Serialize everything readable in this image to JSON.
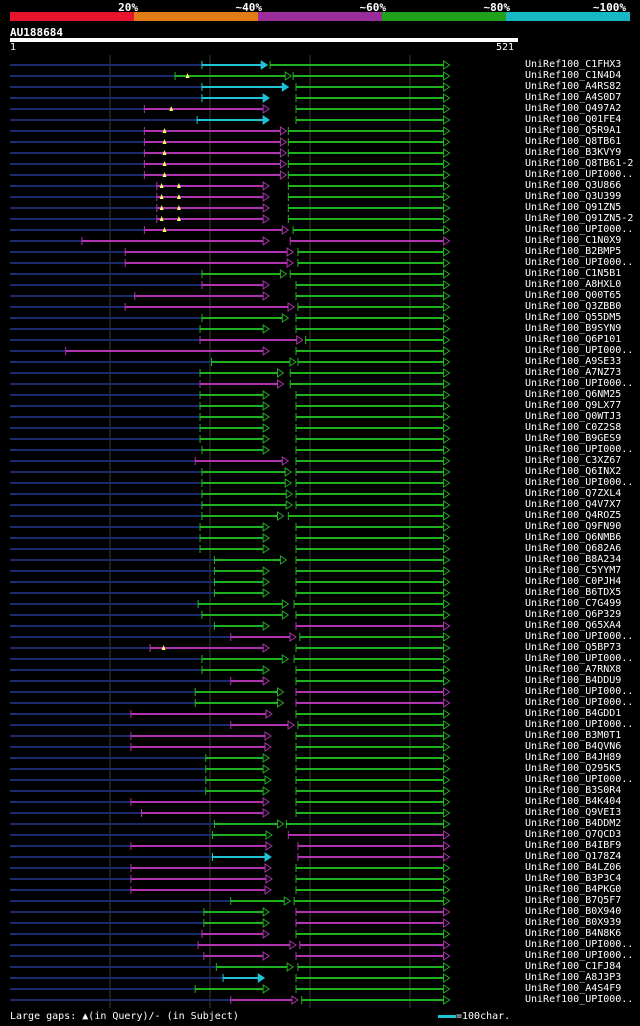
{
  "legend": {
    "segments": [
      {
        "label": "20%",
        "color": "#e8132d"
      },
      {
        "label": "~40%",
        "color": "#e07b16"
      },
      {
        "label": "~60%",
        "color": "#9b2d9a"
      },
      {
        "label": "~80%",
        "color": "#1fa219"
      },
      {
        "label": "~100%",
        "color": "#17b8c4"
      }
    ]
  },
  "query": {
    "id": "AU188684",
    "start": "1",
    "end": "521",
    "length": 521
  },
  "colors": {
    "purple": "#b033b0",
    "green": "#1fb21f",
    "cyan": "#1ec3d6",
    "query": "#1a2a6c",
    "grid": "#3a3a3a"
  },
  "hits": [
    {
      "name": "UniRef100_C1FHX3",
      "segs": [
        [
          200,
          268,
          "cyan"
        ],
        [
          271,
          458,
          "green"
        ]
      ]
    },
    {
      "name": "UniRef100_C1N4D4",
      "segs": [
        [
          172,
          293,
          "green"
        ],
        [
          295,
          458,
          "green"
        ]
      ],
      "q": [
        185
      ]
    },
    {
      "name": "UniRef100_A4RS82",
      "segs": [
        [
          200,
          290,
          "cyan"
        ],
        [
          298,
          458,
          "green"
        ]
      ]
    },
    {
      "name": "UniRef100_A4S0D7",
      "segs": [
        [
          200,
          270,
          "cyan"
        ],
        [
          298,
          458,
          "green"
        ]
      ]
    },
    {
      "name": "UniRef100_Q497A2",
      "segs": [
        [
          140,
          270,
          "purple"
        ],
        [
          298,
          458,
          "green"
        ]
      ],
      "q": [
        168
      ]
    },
    {
      "name": "UniRef100_Q01FE4",
      "segs": [
        [
          195,
          270,
          "cyan"
        ],
        [
          298,
          458,
          "green"
        ]
      ]
    },
    {
      "name": "UniRef100_Q5R9A1",
      "segs": [
        [
          140,
          288,
          "purple"
        ],
        [
          290,
          458,
          "green"
        ]
      ],
      "q": [
        161
      ]
    },
    {
      "name": "UniRef100_Q8TB61",
      "segs": [
        [
          140,
          288,
          "purple"
        ],
        [
          290,
          458,
          "green"
        ]
      ],
      "q": [
        161
      ]
    },
    {
      "name": "UniRef100_B3KVY9",
      "segs": [
        [
          140,
          288,
          "purple"
        ],
        [
          290,
          458,
          "green"
        ]
      ],
      "q": [
        161
      ]
    },
    {
      "name": "UniRef100_Q8TB61-2",
      "segs": [
        [
          140,
          288,
          "purple"
        ],
        [
          290,
          458,
          "green"
        ]
      ],
      "q": [
        161
      ]
    },
    {
      "name": "UniRef100_UPI000..",
      "segs": [
        [
          140,
          288,
          "purple"
        ],
        [
          290,
          458,
          "green"
        ]
      ],
      "q": [
        161
      ]
    },
    {
      "name": "UniRef100_Q3U866",
      "segs": [
        [
          153,
          270,
          "purple"
        ],
        [
          290,
          458,
          "green"
        ]
      ],
      "q": [
        158,
        176
      ]
    },
    {
      "name": "UniRef100_Q3U399",
      "segs": [
        [
          153,
          270,
          "purple"
        ],
        [
          290,
          458,
          "green"
        ]
      ],
      "q": [
        158,
        176
      ]
    },
    {
      "name": "UniRef100_Q91ZN5",
      "segs": [
        [
          153,
          270,
          "purple"
        ],
        [
          290,
          458,
          "green"
        ]
      ],
      "q": [
        158,
        176
      ]
    },
    {
      "name": "UniRef100_Q91ZN5-2",
      "segs": [
        [
          153,
          270,
          "purple"
        ],
        [
          290,
          458,
          "green"
        ]
      ],
      "q": [
        158,
        176
      ]
    },
    {
      "name": "UniRef100_UPI000..",
      "segs": [
        [
          140,
          290,
          "purple"
        ],
        [
          295,
          458,
          "green"
        ]
      ],
      "q": [
        161
      ]
    },
    {
      "name": "UniRef100_C1N0X9",
      "segs": [
        [
          75,
          270,
          "purple"
        ],
        [
          292,
          458,
          "purple"
        ]
      ]
    },
    {
      "name": "UniRef100_B2BMP5",
      "segs": [
        [
          120,
          295,
          "purple"
        ],
        [
          300,
          458,
          "green"
        ]
      ]
    },
    {
      "name": "UniRef100_UPI000..",
      "segs": [
        [
          120,
          295,
          "purple"
        ],
        [
          300,
          458,
          "green"
        ]
      ]
    },
    {
      "name": "UniRef100_C1N5B1",
      "segs": [
        [
          200,
          288,
          "green"
        ],
        [
          292,
          458,
          "green"
        ]
      ]
    },
    {
      "name": "UniRef100_A8HXL0",
      "segs": [
        [
          200,
          270,
          "purple"
        ],
        [
          298,
          458,
          "green"
        ]
      ]
    },
    {
      "name": "UniRef100_Q00T65",
      "segs": [
        [
          130,
          270,
          "purple"
        ],
        [
          298,
          458,
          "green"
        ]
      ]
    },
    {
      "name": "UniRef100_Q3ZBB0",
      "segs": [
        [
          120,
          296,
          "purple"
        ],
        [
          300,
          458,
          "green"
        ]
      ]
    },
    {
      "name": "UniRef100_Q55DM5",
      "segs": [
        [
          200,
          290,
          "green"
        ],
        [
          298,
          458,
          "green"
        ]
      ]
    },
    {
      "name": "UniRef100_B9SYN9",
      "segs": [
        [
          198,
          270,
          "green"
        ],
        [
          298,
          458,
          "green"
        ]
      ]
    },
    {
      "name": "UniRef100_Q6P101",
      "segs": [
        [
          198,
          305,
          "purple"
        ],
        [
          308,
          458,
          "green"
        ]
      ]
    },
    {
      "name": "UniRef100_UPI000..",
      "segs": [
        [
          58,
          270,
          "purple"
        ],
        [
          298,
          458,
          "green"
        ]
      ]
    },
    {
      "name": "UniRef100_A9SE33",
      "segs": [
        [
          210,
          298,
          "green"
        ],
        [
          300,
          458,
          "green"
        ]
      ]
    },
    {
      "name": "UniRef100_A7NZ73",
      "segs": [
        [
          198,
          285,
          "green"
        ],
        [
          292,
          458,
          "green"
        ]
      ]
    },
    {
      "name": "UniRef100_UPI000..",
      "segs": [
        [
          198,
          285,
          "purple"
        ],
        [
          292,
          458,
          "green"
        ]
      ]
    },
    {
      "name": "UniRef100_Q6NM25",
      "segs": [
        [
          198,
          270,
          "green"
        ],
        [
          298,
          458,
          "green"
        ]
      ]
    },
    {
      "name": "UniRef100_Q9LX77",
      "segs": [
        [
          198,
          270,
          "green"
        ],
        [
          298,
          458,
          "green"
        ]
      ]
    },
    {
      "name": "UniRef100_Q0WTJ3",
      "segs": [
        [
          198,
          270,
          "green"
        ],
        [
          298,
          458,
          "green"
        ]
      ]
    },
    {
      "name": "UniRef100_C0Z2S8",
      "segs": [
        [
          198,
          270,
          "green"
        ],
        [
          298,
          458,
          "green"
        ]
      ]
    },
    {
      "name": "UniRef100_B9GES9",
      "segs": [
        [
          198,
          270,
          "green"
        ],
        [
          298,
          458,
          "green"
        ]
      ]
    },
    {
      "name": "UniRef100_UPI000..",
      "segs": [
        [
          200,
          270,
          "green"
        ],
        [
          298,
          458,
          "green"
        ]
      ]
    },
    {
      "name": "UniRef100_C3XZ67",
      "segs": [
        [
          193,
          290,
          "purple"
        ],
        [
          298,
          458,
          "green"
        ]
      ]
    },
    {
      "name": "UniRef100_Q6INX2",
      "segs": [
        [
          200,
          293,
          "green"
        ],
        [
          298,
          458,
          "green"
        ]
      ]
    },
    {
      "name": "UniRef100_UPI000..",
      "segs": [
        [
          200,
          293,
          "green"
        ],
        [
          298,
          458,
          "green"
        ]
      ]
    },
    {
      "name": "UniRef100_Q7ZXL4",
      "segs": [
        [
          200,
          294,
          "green"
        ],
        [
          298,
          458,
          "green"
        ]
      ]
    },
    {
      "name": "UniRef100_Q4V7X7",
      "segs": [
        [
          200,
          294,
          "green"
        ],
        [
          298,
          458,
          "green"
        ]
      ]
    },
    {
      "name": "UniRef100_Q4ROZ5",
      "segs": [
        [
          200,
          285,
          "green"
        ],
        [
          290,
          458,
          "green"
        ]
      ]
    },
    {
      "name": "UniRef100_Q9FN90",
      "segs": [
        [
          198,
          270,
          "green"
        ],
        [
          298,
          458,
          "green"
        ]
      ]
    },
    {
      "name": "UniRef100_Q6NMB6",
      "segs": [
        [
          198,
          270,
          "green"
        ],
        [
          298,
          458,
          "green"
        ]
      ]
    },
    {
      "name": "UniRef100_Q682A6",
      "segs": [
        [
          198,
          270,
          "green"
        ],
        [
          298,
          458,
          "green"
        ]
      ]
    },
    {
      "name": "UniRef100_B8A234",
      "segs": [
        [
          213,
          288,
          "green"
        ],
        [
          298,
          458,
          "green"
        ]
      ]
    },
    {
      "name": "UniRef100_C5YYM7",
      "segs": [
        [
          213,
          270,
          "green"
        ],
        [
          298,
          458,
          "green"
        ]
      ]
    },
    {
      "name": "UniRef100_C0PJH4",
      "segs": [
        [
          213,
          270,
          "green"
        ],
        [
          298,
          458,
          "green"
        ]
      ]
    },
    {
      "name": "UniRef100_B6TDX5",
      "segs": [
        [
          213,
          270,
          "green"
        ],
        [
          298,
          458,
          "green"
        ]
      ]
    },
    {
      "name": "UniRef100_C7G499",
      "segs": [
        [
          196,
          290,
          "green"
        ],
        [
          296,
          458,
          "green"
        ]
      ]
    },
    {
      "name": "UniRef100_Q6P329",
      "segs": [
        [
          200,
          290,
          "green"
        ],
        [
          298,
          458,
          "green"
        ]
      ]
    },
    {
      "name": "UniRef100_Q65XA4",
      "segs": [
        [
          213,
          270,
          "green"
        ],
        [
          298,
          458,
          "purple"
        ]
      ]
    },
    {
      "name": "UniRef100_UPI000..",
      "segs": [
        [
          230,
          298,
          "purple"
        ],
        [
          302,
          458,
          "green"
        ]
      ]
    },
    {
      "name": "UniRef100_Q5BP73",
      "segs": [
        [
          146,
          270,
          "purple"
        ],
        [
          298,
          458,
          "green"
        ]
      ],
      "q": [
        160
      ]
    },
    {
      "name": "UniRef100_UPI000..",
      "segs": [
        [
          200,
          290,
          "green"
        ],
        [
          296,
          458,
          "green"
        ]
      ]
    },
    {
      "name": "UniRef100_A7RNX8",
      "segs": [
        [
          200,
          270,
          "green"
        ],
        [
          298,
          458,
          "green"
        ]
      ]
    },
    {
      "name": "UniRef100_B4DDU9",
      "segs": [
        [
          230,
          270,
          "purple"
        ],
        [
          298,
          458,
          "green"
        ]
      ]
    },
    {
      "name": "UniRef100_UPI000..",
      "segs": [
        [
          193,
          285,
          "green"
        ],
        [
          298,
          458,
          "purple"
        ]
      ]
    },
    {
      "name": "UniRef100_UPI000..",
      "segs": [
        [
          193,
          285,
          "green"
        ],
        [
          298,
          458,
          "purple"
        ]
      ]
    },
    {
      "name": "UniRef100_B4GDD1",
      "segs": [
        [
          126,
          273,
          "purple"
        ],
        [
          298,
          458,
          "green"
        ]
      ]
    },
    {
      "name": "UniRef100_UPI000..",
      "segs": [
        [
          230,
          296,
          "purple"
        ],
        [
          300,
          458,
          "green"
        ]
      ]
    },
    {
      "name": "UniRef100_B3M0T1",
      "segs": [
        [
          126,
          272,
          "purple"
        ],
        [
          298,
          458,
          "green"
        ]
      ]
    },
    {
      "name": "UniRef100_B4QVN6",
      "segs": [
        [
          126,
          272,
          "purple"
        ],
        [
          298,
          458,
          "green"
        ]
      ]
    },
    {
      "name": "UniRef100_B4JH89",
      "segs": [
        [
          204,
          270,
          "green"
        ],
        [
          298,
          458,
          "green"
        ]
      ]
    },
    {
      "name": "UniRef100_Q295K5",
      "segs": [
        [
          204,
          270,
          "green"
        ],
        [
          298,
          458,
          "green"
        ]
      ]
    },
    {
      "name": "UniRef100_UPI000..",
      "segs": [
        [
          204,
          272,
          "green"
        ],
        [
          298,
          458,
          "green"
        ]
      ]
    },
    {
      "name": "UniRef100_B3S0R4",
      "segs": [
        [
          204,
          270,
          "green"
        ],
        [
          298,
          458,
          "green"
        ]
      ]
    },
    {
      "name": "UniRef100_B4K404",
      "segs": [
        [
          126,
          270,
          "purple"
        ],
        [
          298,
          458,
          "green"
        ]
      ]
    },
    {
      "name": "UniRef100_Q9VEI3",
      "segs": [
        [
          137,
          270,
          "purple"
        ],
        [
          298,
          458,
          "green"
        ]
      ]
    },
    {
      "name": "UniRef100_B4DDM2",
      "segs": [
        [
          213,
          285,
          "green"
        ],
        [
          288,
          458,
          "green"
        ]
      ]
    },
    {
      "name": "UniRef100_Q7QCD3",
      "segs": [
        [
          211,
          273,
          "green"
        ],
        [
          290,
          458,
          "purple"
        ]
      ]
    },
    {
      "name": "UniRef100_B4IBF9",
      "segs": [
        [
          126,
          273,
          "purple"
        ],
        [
          300,
          458,
          "purple"
        ]
      ]
    },
    {
      "name": "UniRef100_Q178Z4",
      "segs": [
        [
          211,
          272,
          "cyan"
        ],
        [
          300,
          458,
          "purple"
        ]
      ]
    },
    {
      "name": "UniRef100_B4LZ06",
      "segs": [
        [
          126,
          272,
          "purple"
        ],
        [
          298,
          458,
          "green"
        ]
      ]
    },
    {
      "name": "UniRef100_B3P3C4",
      "segs": [
        [
          126,
          273,
          "purple"
        ],
        [
          298,
          458,
          "green"
        ]
      ]
    },
    {
      "name": "UniRef100_B4PKG0",
      "segs": [
        [
          126,
          272,
          "purple"
        ],
        [
          298,
          458,
          "green"
        ]
      ]
    },
    {
      "name": "UniRef100_B7Q5F7",
      "segs": [
        [
          230,
          292,
          "green"
        ],
        [
          296,
          458,
          "green"
        ]
      ]
    },
    {
      "name": "UniRef100_B0X940",
      "segs": [
        [
          202,
          270,
          "green"
        ],
        [
          298,
          458,
          "purple"
        ]
      ]
    },
    {
      "name": "UniRef100_B0X939",
      "segs": [
        [
          202,
          270,
          "green"
        ],
        [
          298,
          458,
          "purple"
        ]
      ]
    },
    {
      "name": "UniRef100_B4N8K6",
      "segs": [
        [
          200,
          270,
          "purple"
        ],
        [
          298,
          458,
          "green"
        ]
      ]
    },
    {
      "name": "UniRef100_UPI000..",
      "segs": [
        [
          196,
          298,
          "purple"
        ],
        [
          302,
          458,
          "purple"
        ]
      ]
    },
    {
      "name": "UniRef100_UPI000..",
      "segs": [
        [
          202,
          270,
          "purple"
        ],
        [
          298,
          458,
          "purple"
        ]
      ]
    },
    {
      "name": "UniRef100_C1FJ84",
      "segs": [
        [
          215,
          295,
          "green"
        ],
        [
          300,
          458,
          "green"
        ]
      ]
    },
    {
      "name": "UniRef100_A8J3P3",
      "segs": [
        [
          222,
          265,
          "cyan"
        ],
        [
          298,
          458,
          "green"
        ]
      ]
    },
    {
      "name": "UniRef100_A4S4F9",
      "segs": [
        [
          193,
          270,
          "green"
        ],
        [
          298,
          458,
          "green"
        ]
      ]
    },
    {
      "name": "UniRef100_UPI000..",
      "segs": [
        [
          230,
          300,
          "purple"
        ],
        [
          304,
          458,
          "green"
        ]
      ]
    }
  ],
  "footer": {
    "gap_label": "Large gaps:",
    "in_query": "(in Query)/",
    "in_subject": "(in Subject)",
    "scale_label": "=100char."
  }
}
